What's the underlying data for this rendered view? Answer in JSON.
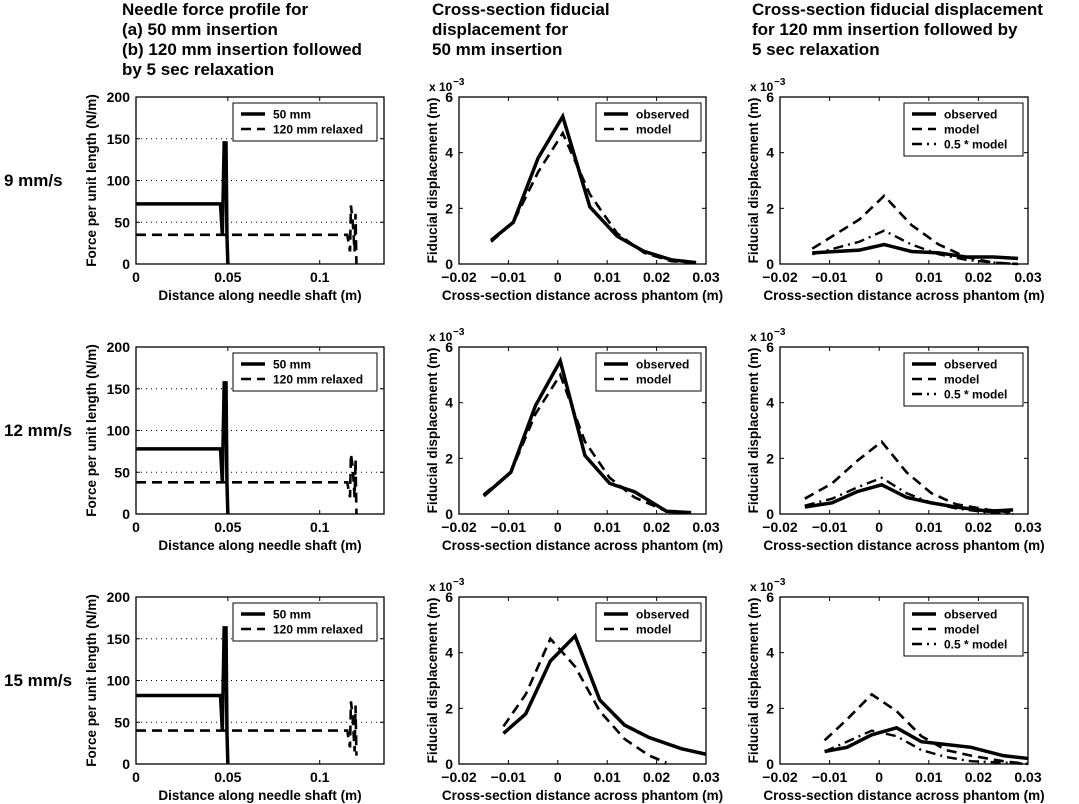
{
  "column_titles": [
    "Needle force profile for\n(a) 50 mm insertion\n(b) 120 mm insertion followed\nby 5 sec relaxation",
    "Cross-section fiducial\ndisplacement for\n50 mm insertion",
    "Cross-section fiducial displacement\nfor 120 mm insertion followed by\n5 sec relaxation"
  ],
  "row_labels": [
    "9 mm/s",
    "12 mm/s",
    "15 mm/s"
  ],
  "chart_data": [
    {
      "type": "line",
      "row": 0,
      "col": 0,
      "xlabel": "Distance along needle shaft (m)",
      "ylabel": "Force per unit length (N/m)",
      "xlim": [
        0,
        0.135
      ],
      "ylim": [
        0,
        200
      ],
      "xticks": [
        0,
        0.05,
        0.1
      ],
      "xticklabels": [
        "0",
        "0.05",
        "0.1"
      ],
      "yticks": [
        0,
        50,
        100,
        150,
        200
      ],
      "yticklabels": [
        "0",
        "50",
        "100",
        "150",
        "200"
      ],
      "grid": true,
      "legend": "top-right",
      "series": [
        {
          "name": "50 mm",
          "style": "solid",
          "x": [
            0,
            0.046,
            0.047,
            0.048,
            0.049,
            0.0495,
            0.05
          ],
          "y": [
            72,
            72,
            35,
            145,
            145,
            35,
            0
          ]
        },
        {
          "name": "120 mm relaxed",
          "style": "dashed",
          "x": [
            0,
            0.115,
            0.1165,
            0.117,
            0.118,
            0.119,
            0.1195,
            0.12
          ],
          "y": [
            35,
            35,
            15,
            70,
            50,
            15,
            60,
            0
          ]
        }
      ]
    },
    {
      "type": "line",
      "row": 0,
      "col": 1,
      "xlabel": "Cross-section distance across phantom (m)",
      "ylabel": "Fiducial displacement (m)",
      "multiplier": "x 10",
      "exponent": "−3",
      "xlim": [
        -0.02,
        0.03
      ],
      "ylim": [
        0,
        6
      ],
      "xticks": [
        -0.02,
        -0.01,
        0,
        0.01,
        0.02,
        0.03
      ],
      "xticklabels": [
        "−0.02",
        "−0.01",
        "0",
        "0.01",
        "0.02",
        "0.03"
      ],
      "yticks": [
        0,
        2,
        4,
        6
      ],
      "yticklabels": [
        "0",
        "2",
        "4",
        "6"
      ],
      "grid": false,
      "legend": "top-right",
      "series": [
        {
          "name": "observed",
          "style": "solid",
          "x": [
            -0.0135,
            -0.009,
            -0.004,
            0.001,
            0.0065,
            0.012,
            0.0175,
            0.023,
            0.028
          ],
          "y": [
            0.85,
            1.5,
            3.8,
            5.3,
            2.05,
            1.0,
            0.45,
            0.15,
            0.05
          ]
        },
        {
          "name": "model",
          "style": "dashed",
          "x": [
            -0.0135,
            -0.009,
            -0.004,
            0.001,
            0.0065,
            0.012,
            0.0175,
            0.023,
            0.028
          ],
          "y": [
            0.8,
            1.5,
            3.3,
            4.7,
            2.5,
            1.1,
            0.4,
            0.1,
            0.05
          ]
        }
      ]
    },
    {
      "type": "line",
      "row": 0,
      "col": 2,
      "xlabel": "Cross-section distance across phantom (m)",
      "ylabel": "Fiducial displacement (m)",
      "multiplier": "x 10",
      "exponent": "−3",
      "xlim": [
        -0.02,
        0.03
      ],
      "ylim": [
        0,
        6
      ],
      "xticks": [
        -0.02,
        -0.01,
        0,
        0.01,
        0.02,
        0.03
      ],
      "xticklabels": [
        "−0.02",
        "−0.01",
        "0",
        "0.01",
        "0.02",
        "0.03"
      ],
      "yticks": [
        0,
        2,
        4,
        6
      ],
      "yticklabels": [
        "0",
        "2",
        "4",
        "6"
      ],
      "grid": false,
      "legend": "top-right",
      "series": [
        {
          "name": "observed",
          "style": "solid",
          "x": [
            -0.0135,
            -0.004,
            0.001,
            0.0065,
            0.012,
            0.0175,
            0.023,
            0.028
          ],
          "y": [
            0.4,
            0.5,
            0.7,
            0.45,
            0.4,
            0.25,
            0.25,
            0.2
          ]
        },
        {
          "name": "model",
          "style": "dashed",
          "x": [
            -0.0135,
            -0.004,
            0.001,
            0.0065,
            0.012,
            0.0175,
            0.023,
            0.028
          ],
          "y": [
            0.55,
            1.6,
            2.45,
            1.4,
            0.7,
            0.25,
            0.05,
            0.0
          ]
        },
        {
          "name": "0.5 * model",
          "style": "dashdot",
          "x": [
            -0.0135,
            -0.004,
            0.001,
            0.0065,
            0.012,
            0.0175,
            0.023,
            0.028
          ],
          "y": [
            0.35,
            0.8,
            1.2,
            0.7,
            0.35,
            0.15,
            0.05,
            0.0
          ]
        }
      ]
    },
    {
      "type": "line",
      "row": 1,
      "col": 0,
      "xlabel": "Distance along needle shaft (m)",
      "ylabel": "Force per unit length (N/m)",
      "xlim": [
        0,
        0.135
      ],
      "ylim": [
        0,
        200
      ],
      "xticks": [
        0,
        0.05,
        0.1
      ],
      "xticklabels": [
        "0",
        "0.05",
        "0.1"
      ],
      "yticks": [
        0,
        50,
        100,
        150,
        200
      ],
      "yticklabels": [
        "0",
        "50",
        "100",
        "150",
        "200"
      ],
      "grid": true,
      "legend": "top-right",
      "series": [
        {
          "name": "50 mm",
          "style": "solid",
          "x": [
            0,
            0.046,
            0.047,
            0.048,
            0.049,
            0.0495,
            0.05
          ],
          "y": [
            78,
            78,
            38,
            157,
            157,
            38,
            0
          ]
        },
        {
          "name": "120 mm relaxed",
          "style": "dashed",
          "x": [
            0,
            0.115,
            0.1165,
            0.117,
            0.118,
            0.119,
            0.1195,
            0.12
          ],
          "y": [
            38,
            38,
            20,
            72,
            55,
            20,
            65,
            0
          ]
        }
      ]
    },
    {
      "type": "line",
      "row": 1,
      "col": 1,
      "xlabel": "Cross-section distance across phantom (m)",
      "ylabel": "Fiducial displacement (m)",
      "multiplier": "x 10",
      "exponent": "−3",
      "xlim": [
        -0.02,
        0.03
      ],
      "ylim": [
        0,
        6
      ],
      "xticks": [
        -0.02,
        -0.01,
        0,
        0.01,
        0.02,
        0.03
      ],
      "xticklabels": [
        "−0.02",
        "−0.01",
        "0",
        "0.01",
        "0.02",
        "0.03"
      ],
      "yticks": [
        0,
        2,
        4,
        6
      ],
      "yticklabels": [
        "0",
        "2",
        "4",
        "6"
      ],
      "grid": false,
      "legend": "top-right",
      "series": [
        {
          "name": "observed",
          "style": "solid",
          "x": [
            -0.015,
            -0.0095,
            -0.0045,
            0.0005,
            0.0055,
            0.0105,
            0.0155,
            0.022,
            0.027
          ],
          "y": [
            0.65,
            1.5,
            3.9,
            5.5,
            2.1,
            1.1,
            0.8,
            0.1,
            0.05
          ]
        },
        {
          "name": "model",
          "style": "dashed",
          "x": [
            -0.015,
            -0.0095,
            -0.0045,
            0.0005,
            0.0055,
            0.0105,
            0.0155,
            0.022,
            0.027
          ],
          "y": [
            0.7,
            1.5,
            3.6,
            5.0,
            2.6,
            1.3,
            0.6,
            0.1,
            0.05
          ]
        }
      ]
    },
    {
      "type": "line",
      "row": 1,
      "col": 2,
      "xlabel": "Cross-section distance across phantom (m)",
      "ylabel": "Fiducial displacement (m)",
      "multiplier": "x 10",
      "exponent": "−3",
      "xlim": [
        -0.02,
        0.03
      ],
      "ylim": [
        0,
        6
      ],
      "xticks": [
        -0.02,
        -0.01,
        0,
        0.01,
        0.02,
        0.03
      ],
      "xticklabels": [
        "−0.02",
        "−0.01",
        "0",
        "0.01",
        "0.02",
        "0.03"
      ],
      "yticks": [
        0,
        2,
        4,
        6
      ],
      "yticklabels": [
        "0",
        "2",
        "4",
        "6"
      ],
      "grid": false,
      "legend": "top-right",
      "series": [
        {
          "name": "observed",
          "style": "solid",
          "x": [
            -0.015,
            -0.0095,
            -0.0045,
            0.0005,
            0.0055,
            0.0105,
            0.0155,
            0.022,
            0.027
          ],
          "y": [
            0.25,
            0.4,
            0.8,
            1.05,
            0.6,
            0.4,
            0.25,
            0.1,
            0.15
          ]
        },
        {
          "name": "model",
          "style": "dashed",
          "x": [
            -0.015,
            -0.0095,
            -0.0045,
            0.0005,
            0.0055,
            0.0105,
            0.0155,
            0.022,
            0.027
          ],
          "y": [
            0.55,
            1.1,
            1.9,
            2.6,
            1.5,
            0.75,
            0.35,
            0.15,
            0.05
          ]
        },
        {
          "name": "0.5 * model",
          "style": "dashdot",
          "x": [
            -0.015,
            -0.0095,
            -0.0045,
            0.0005,
            0.0055,
            0.0105,
            0.0155,
            0.022,
            0.027
          ],
          "y": [
            0.3,
            0.55,
            0.95,
            1.3,
            0.75,
            0.4,
            0.2,
            0.05,
            0.0
          ]
        }
      ]
    },
    {
      "type": "line",
      "row": 2,
      "col": 0,
      "xlabel": "Distance along needle shaft (m)",
      "ylabel": "Force per unit length (N/m)",
      "xlim": [
        0,
        0.135
      ],
      "ylim": [
        0,
        200
      ],
      "xticks": [
        0,
        0.05,
        0.1
      ],
      "xticklabels": [
        "0",
        "0.05",
        "0.1"
      ],
      "yticks": [
        0,
        50,
        100,
        150,
        200
      ],
      "yticklabels": [
        "0",
        "50",
        "100",
        "150",
        "200"
      ],
      "grid": true,
      "legend": "top-right",
      "series": [
        {
          "name": "50 mm",
          "style": "solid",
          "x": [
            0,
            0.046,
            0.047,
            0.048,
            0.049,
            0.0495,
            0.05
          ],
          "y": [
            82,
            82,
            40,
            163,
            163,
            40,
            0
          ]
        },
        {
          "name": "120 mm relaxed",
          "style": "dashed",
          "x": [
            0,
            0.115,
            0.1165,
            0.117,
            0.118,
            0.119,
            0.1195,
            0.12
          ],
          "y": [
            40,
            40,
            20,
            75,
            55,
            15,
            70,
            10
          ]
        }
      ]
    },
    {
      "type": "line",
      "row": 2,
      "col": 1,
      "xlabel": "Cross-section distance across phantom (m)",
      "ylabel": "Fiducial displacement (m)",
      "multiplier": "x 10",
      "exponent": "−3",
      "xlim": [
        -0.02,
        0.03
      ],
      "ylim": [
        0,
        6
      ],
      "xticks": [
        -0.02,
        -0.01,
        0,
        0.01,
        0.02,
        0.03
      ],
      "xticklabels": [
        "−0.02",
        "−0.01",
        "0",
        "0.01",
        "0.02",
        "0.03"
      ],
      "yticks": [
        0,
        2,
        4,
        6
      ],
      "yticklabels": [
        "0",
        "2",
        "4",
        "6"
      ],
      "grid": false,
      "legend": "top-right",
      "series": [
        {
          "name": "observed",
          "style": "solid",
          "x": [
            -0.011,
            -0.0065,
            -0.0015,
            0.0035,
            0.0085,
            0.0135,
            0.0185,
            0.025,
            0.03
          ],
          "y": [
            1.1,
            1.8,
            3.7,
            4.6,
            2.3,
            1.4,
            0.95,
            0.55,
            0.35
          ]
        },
        {
          "name": "model",
          "style": "dashed",
          "x": [
            -0.011,
            -0.0065,
            -0.0015,
            0.0035,
            0.0085,
            0.0135,
            0.0185,
            0.022
          ],
          "y": [
            1.35,
            2.5,
            4.5,
            3.5,
            1.9,
            0.9,
            0.3,
            0.05
          ]
        }
      ]
    },
    {
      "type": "line",
      "row": 2,
      "col": 2,
      "xlabel": "Cross-section distance across phantom (m)",
      "ylabel": "Fiducial displacement (m)",
      "multiplier": "x 10",
      "exponent": "−3",
      "xlim": [
        -0.02,
        0.03
      ],
      "ylim": [
        0,
        6
      ],
      "xticks": [
        -0.02,
        -0.01,
        0,
        0.01,
        0.02,
        0.03
      ],
      "xticklabels": [
        "−0.02",
        "−0.01",
        "0",
        "0.01",
        "0.02",
        "0.03"
      ],
      "yticks": [
        0,
        2,
        4,
        6
      ],
      "yticklabels": [
        "0",
        "2",
        "4",
        "6"
      ],
      "grid": false,
      "legend": "top-right",
      "series": [
        {
          "name": "observed",
          "style": "solid",
          "x": [
            -0.011,
            -0.0065,
            -0.0015,
            0.0035,
            0.0085,
            0.0135,
            0.0185,
            0.025,
            0.03
          ],
          "y": [
            0.45,
            0.6,
            1.05,
            1.3,
            0.8,
            0.7,
            0.6,
            0.3,
            0.2
          ]
        },
        {
          "name": "model",
          "style": "dashed",
          "x": [
            -0.011,
            -0.0065,
            -0.0015,
            0.0035,
            0.0085,
            0.0135,
            0.0185,
            0.025,
            0.03
          ],
          "y": [
            0.85,
            1.6,
            2.5,
            1.9,
            1.0,
            0.5,
            0.3,
            0.1,
            0.0
          ]
        },
        {
          "name": "0.5 * model",
          "style": "dashdot",
          "x": [
            -0.011,
            -0.0065,
            -0.0015,
            0.0035,
            0.0085,
            0.0135,
            0.0185,
            0.025,
            0.03
          ],
          "y": [
            0.45,
            0.8,
            1.2,
            1.0,
            0.5,
            0.25,
            0.1,
            0.05,
            0.0
          ]
        }
      ]
    }
  ]
}
